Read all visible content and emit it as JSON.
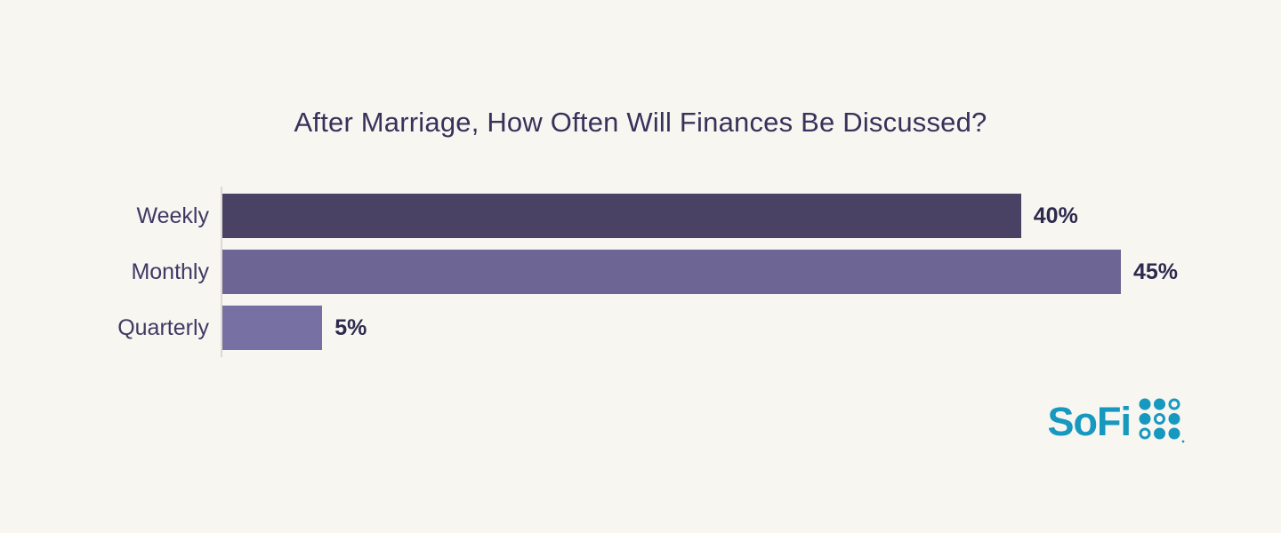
{
  "page": {
    "background_color": "#f8f6f1"
  },
  "chart_data": {
    "type": "bar",
    "orientation": "horizontal",
    "title": "After Marriage, How Often Will Finances Be Discussed?",
    "categories": [
      "Weekly",
      "Monthly",
      "Quarterly"
    ],
    "values": [
      40,
      45,
      5
    ],
    "value_labels": [
      "40%",
      "45%",
      "5%"
    ],
    "bar_colors": [
      "#4a4265",
      "#6d6695",
      "#7670a3"
    ],
    "scale_max": 45,
    "xlim": [
      0,
      45
    ],
    "grid": false,
    "legend": false,
    "title_color": "#37325a",
    "category_label_color": "#3e3963",
    "value_label_color": "#2d2a4e",
    "axis_line_color": "#dcd9d4"
  },
  "branding": {
    "logo_text": "SoFi",
    "logo_color": "#1798bf",
    "logo_dots_icon": "sofi-dots-grid"
  }
}
